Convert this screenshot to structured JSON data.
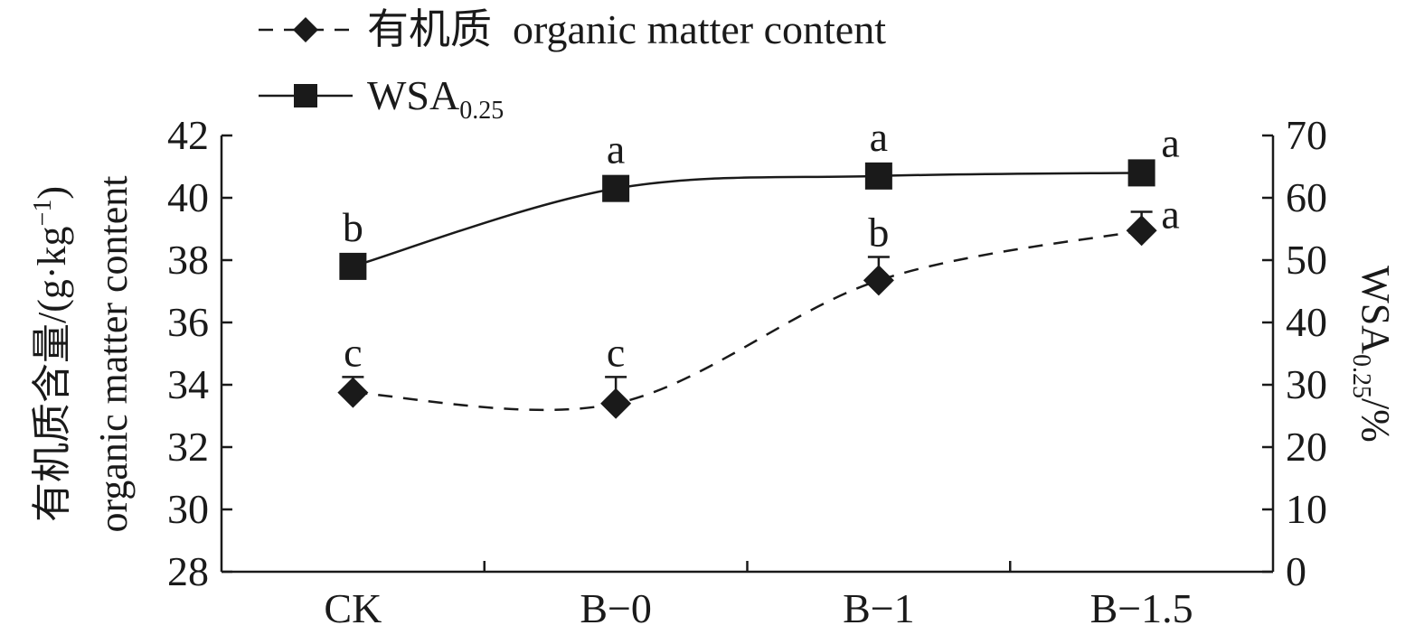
{
  "chart_data": {
    "type": "line",
    "categories": [
      "CK",
      "B−0",
      "B−1",
      "B−1.5"
    ],
    "legend": {
      "position": "top-left",
      "entries": [
        {
          "label": "有机质  organic matter content",
          "style": "dashed",
          "marker": "diamond"
        },
        {
          "label_main": "WSA",
          "label_sub": "0.25",
          "style": "solid",
          "marker": "square"
        }
      ]
    },
    "y_left": {
      "label_line1": "有机质含量/(g·kg",
      "label_sup": "−1",
      "label_close": ")",
      "label_line2": "organic matter content",
      "lim": [
        28,
        42
      ],
      "ticks": [
        "28",
        "30",
        "32",
        "34",
        "36",
        "38",
        "40",
        "42"
      ]
    },
    "y_right": {
      "label_main": "WSA",
      "label_sub": "0.25",
      "label_tail": "/%",
      "lim": [
        0,
        70
      ],
      "ticks": [
        "0",
        "10",
        "20",
        "30",
        "40",
        "50",
        "60",
        "70"
      ]
    },
    "series": [
      {
        "name": "有机质  organic matter content",
        "axis": "left",
        "values": [
          33.75,
          33.4,
          37.35,
          38.95
        ],
        "error": [
          0.5,
          0.85,
          0.75,
          0.6
        ],
        "sig": [
          "c",
          "c",
          "b",
          "a"
        ],
        "color": "#1a1a1a"
      },
      {
        "name": "WSA0.25",
        "axis": "right",
        "values": [
          49.0,
          61.5,
          63.5,
          64.0
        ],
        "sig": [
          "b",
          "a",
          "a",
          "a"
        ],
        "color": "#1a1a1a"
      }
    ],
    "grid": false
  }
}
